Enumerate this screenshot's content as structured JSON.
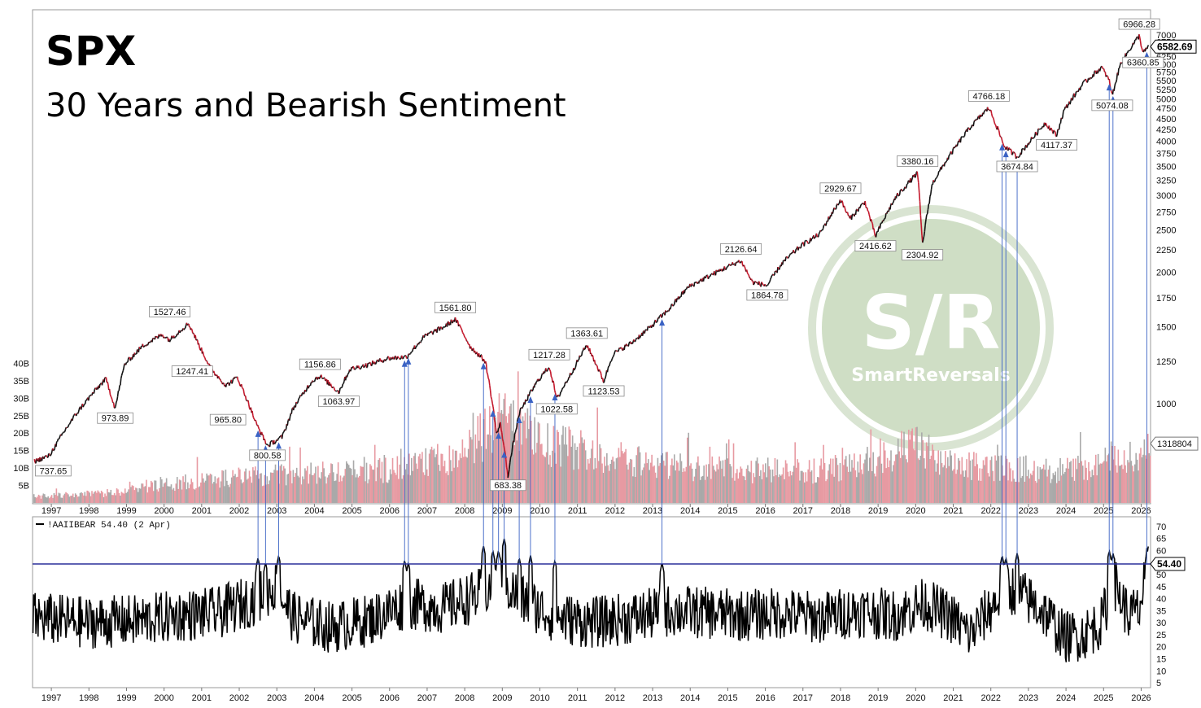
{
  "title": "SPX",
  "subtitle": "30 Years and Bearish Sentiment",
  "watermark": {
    "main": "S/R",
    "sub": "SmartReversals",
    "color": "#a9c49a"
  },
  "colors": {
    "price_up": "#111111",
    "price_down": "#c4182c",
    "volume_a": "#e79aa2",
    "volume_b": "#a9a9a9",
    "arrow": "#3a62c4",
    "hline": "#2a2f9a",
    "sentiment": "#000000"
  },
  "chart_data": [
    {
      "type": "line",
      "title": "SPX",
      "scale": "log",
      "ylim": [
        640,
        7400
      ],
      "y_ticks": [
        1000,
        1250,
        1500,
        1750,
        2000,
        2250,
        2500,
        2750,
        3000,
        3250,
        3500,
        3750,
        4000,
        4250,
        4500,
        4750,
        5000,
        5250,
        5500,
        5750,
        6000,
        6250,
        6500,
        6750,
        7000
      ],
      "x_ticks": [
        "1997",
        "1998",
        "1999",
        "2000",
        "2001",
        "2002",
        "2003",
        "2004",
        "2005",
        "2006",
        "2007",
        "2008",
        "2009",
        "2010",
        "2011",
        "2012",
        "2013",
        "2014",
        "2015",
        "2016",
        "2017",
        "2018",
        "2019",
        "2020",
        "2021",
        "2022",
        "2023",
        "2024",
        "2025",
        "2026"
      ],
      "series": [
        {
          "x": [
            1996.6,
            1997.0,
            1997.8,
            1998.5,
            1998.75,
            1999.0,
            1999.5,
            2000.0,
            2000.2,
            2000.7,
            2001.0,
            2001.3,
            2001.7,
            2002.0,
            2002.5,
            2002.8,
            2003.2,
            2003.5,
            2004.0,
            2004.2,
            2004.7,
            2005.0,
            2005.5,
            2006.0,
            2006.5,
            2007.0,
            2007.5,
            2007.8,
            2008.2,
            2008.6,
            2008.9,
            2009.0,
            2009.2,
            2009.5,
            2010.0,
            2010.3,
            2010.5,
            2010.9,
            2011.3,
            2011.75,
            2012.0,
            2012.5,
            2013.0,
            2013.5,
            2014.0,
            2014.5,
            2015.0,
            2015.4,
            2015.7,
            2016.1,
            2016.5,
            2017.0,
            2017.5,
            2018.05,
            2018.3,
            2018.7,
            2018.98,
            2019.5,
            2020.1,
            2020.23,
            2020.5,
            2021.0,
            2021.5,
            2022.0,
            2022.4,
            2022.75,
            2023.0,
            2023.5,
            2023.8,
            2024.0,
            2024.5,
            2025.0,
            2025.2,
            2025.28,
            2025.5,
            2025.8,
            2026.0,
            2026.1,
            2026.25
          ],
          "values": [
            737.65,
            760,
            970,
            1140,
            973.89,
            1230,
            1360,
            1440,
            1400,
            1527.46,
            1350,
            1200,
            1100,
            1150,
            900,
            800.58,
            840,
            980,
            1130,
            1156.86,
            1063.97,
            1200,
            1230,
            1270,
            1280,
            1430,
            1500,
            1561.8,
            1350,
            1250,
            850,
            900,
            683.38,
            950,
            1130,
            1217.28,
            1022.58,
            1180,
            1363.61,
            1123.53,
            1300,
            1380,
            1500,
            1650,
            1850,
            1950,
            2050,
            2126.64,
            1900,
            1864.78,
            2100,
            2300,
            2450,
            2929.67,
            2650,
            2900,
            2416.62,
            2950,
            3380.16,
            2304.92,
            3200,
            3750,
            4300,
            4766.18,
            3900,
            3674.84,
            3900,
            4400,
            4117.37,
            4700,
            5400,
            5900,
            5500,
            5074.08,
            6000,
            6600,
            6966.28,
            6360.85,
            6582.69
          ]
        }
      ],
      "annotations": [
        "737.65",
        "973.89",
        "1527.46",
        "1247.41",
        "965.80",
        "800.58",
        "1156.86",
        "1063.97",
        "1561.80",
        "683.38",
        "1217.28",
        "1022.58",
        "1363.61",
        "1123.53",
        "2126.64",
        "1864.78",
        "2929.67",
        "2416.62",
        "3380.16",
        "2304.92",
        "4766.18",
        "3674.84",
        "4117.37",
        "5074.08",
        "6966.28",
        "6360.85"
      ],
      "last_value": "6582.69"
    },
    {
      "type": "bar",
      "title": "Volume",
      "ylim": [
        0,
        45
      ],
      "y_ticks": [
        "5B",
        "10B",
        "15B",
        "20B",
        "25B",
        "30B",
        "35B",
        "40B"
      ],
      "unit": "B",
      "last_value": "1318804",
      "profile": {
        "x": [
          1996.6,
          1998.5,
          2000.0,
          2002.0,
          2004.0,
          2006.0,
          2008.0,
          2008.8,
          2009.3,
          2010.0,
          2011.0,
          2012.0,
          2014.0,
          2016.0,
          2018.0,
          2020.2,
          2020.6,
          2022.0,
          2024.0,
          2025.3,
          2026.25
        ],
        "values": [
          2,
          3,
          6,
          8,
          9,
          10,
          15,
          25,
          26,
          18,
          17,
          14,
          11,
          10,
          10,
          18,
          12,
          11,
          10,
          13,
          16
        ]
      }
    },
    {
      "type": "line",
      "title": "!AAIIBEAR",
      "legend": "!AAIIBEAR 54.40 (2 Apr)",
      "ylim": [
        3,
        73
      ],
      "y_ticks": [
        5,
        10,
        15,
        20,
        25,
        30,
        35,
        40,
        45,
        50,
        55,
        60,
        65,
        70
      ],
      "x_ticks": [
        "1997",
        "1998",
        "1999",
        "2000",
        "2001",
        "2002",
        "2003",
        "2004",
        "2005",
        "2006",
        "2007",
        "2008",
        "2009",
        "2010",
        "2011",
        "2012",
        "2013",
        "2014",
        "2015",
        "2016",
        "2017",
        "2018",
        "2019",
        "2020",
        "2021",
        "2022",
        "2023",
        "2024",
        "2025",
        "2026"
      ],
      "threshold": 54.4,
      "last_value": "54.40",
      "peaks": [
        {
          "x": 2002.55,
          "y": 57
        },
        {
          "x": 2002.75,
          "y": 55
        },
        {
          "x": 2003.1,
          "y": 58
        },
        {
          "x": 2006.45,
          "y": 56
        },
        {
          "x": 2006.55,
          "y": 55
        },
        {
          "x": 2008.55,
          "y": 62
        },
        {
          "x": 2008.8,
          "y": 60
        },
        {
          "x": 2008.95,
          "y": 60
        },
        {
          "x": 2009.1,
          "y": 65
        },
        {
          "x": 2009.5,
          "y": 57
        },
        {
          "x": 2009.8,
          "y": 58
        },
        {
          "x": 2010.45,
          "y": 56
        },
        {
          "x": 2013.3,
          "y": 55
        },
        {
          "x": 2022.35,
          "y": 58
        },
        {
          "x": 2022.45,
          "y": 57
        },
        {
          "x": 2022.75,
          "y": 59
        },
        {
          "x": 2025.2,
          "y": 60
        },
        {
          "x": 2025.3,
          "y": 59
        },
        {
          "x": 2026.2,
          "y": 54.4
        }
      ],
      "profile": {
        "x": [
          1996.6,
          1998.0,
          1999.5,
          2000.5,
          2001.5,
          2002.5,
          2003.0,
          2003.5,
          2004.5,
          2005.5,
          2006.5,
          2007.5,
          2008.5,
          2009.0,
          2009.5,
          2010.5,
          2011.5,
          2012.5,
          2013.5,
          2014.5,
          2015.5,
          2016.5,
          2017.5,
          2018.5,
          2019.5,
          2020.3,
          2021.0,
          2021.5,
          2022.5,
          2023.0,
          2023.5,
          2024.0,
          2024.5,
          2025.0,
          2025.3,
          2025.7,
          2026.0,
          2026.25
        ],
        "values": [
          32,
          30,
          31,
          33,
          34,
          40,
          45,
          32,
          28,
          31,
          38,
          36,
          42,
          48,
          40,
          32,
          30,
          32,
          35,
          34,
          33,
          34,
          32,
          35,
          33,
          38,
          32,
          25,
          45,
          40,
          34,
          24,
          25,
          30,
          48,
          33,
          35,
          54.4
        ]
      }
    }
  ],
  "arrow_dates": [
    2002.55,
    2002.75,
    2003.1,
    2006.45,
    2006.55,
    2008.55,
    2008.8,
    2008.95,
    2009.1,
    2009.5,
    2009.8,
    2010.45,
    2013.3,
    2022.35,
    2022.45,
    2022.75,
    2025.2,
    2025.3,
    2026.2
  ]
}
